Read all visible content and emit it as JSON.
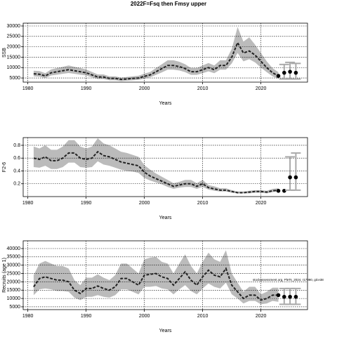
{
  "title": "2022F=Fsq then Fmsy upper",
  "chart_data": [
    {
      "type": "line",
      "ylabel": "SSB",
      "xlabel": "Years",
      "color": "#222222",
      "band_color": "#bbbbbb",
      "bar_color": "#aaaaaa",
      "grid": true,
      "xlim": [
        1979.2,
        2028
      ],
      "xticks": [
        1980,
        1990,
        2000,
        2010,
        2020
      ],
      "ylim": [
        3000,
        31350
      ],
      "yticks": [
        5000,
        10000,
        15000,
        20000,
        25000,
        30000
      ],
      "x": [
        1981,
        1982,
        1983,
        1984,
        1985,
        1986,
        1987,
        1988,
        1989,
        1990,
        1991,
        1992,
        1993,
        1994,
        1995,
        1996,
        1997,
        1998,
        1999,
        2000,
        2001,
        2002,
        2003,
        2004,
        2005,
        2006,
        2007,
        2008,
        2009,
        2010,
        2011,
        2012,
        2013,
        2014,
        2015,
        2016,
        2017,
        2018,
        2019,
        2020,
        2021,
        2022,
        2023
      ],
      "values": [
        7000,
        6800,
        6000,
        7500,
        8000,
        8500,
        9000,
        8500,
        8000,
        7500,
        6500,
        5500,
        5500,
        4800,
        4800,
        4300,
        4500,
        4800,
        5000,
        5800,
        6500,
        8000,
        9500,
        11000,
        11000,
        10500,
        9500,
        8000,
        8000,
        9000,
        10000,
        9000,
        11000,
        11000,
        15000,
        22000,
        17000,
        18000,
        16000,
        13000,
        10000,
        7500,
        6000
      ],
      "low": [
        5800,
        5600,
        5000,
        6200,
        6600,
        7000,
        7400,
        7000,
        6600,
        6200,
        5300,
        4500,
        4500,
        3900,
        3900,
        3500,
        3700,
        3900,
        4100,
        4700,
        5300,
        6500,
        7700,
        9000,
        9000,
        8600,
        7800,
        6500,
        6500,
        7300,
        8200,
        7300,
        9000,
        9000,
        12000,
        17000,
        13000,
        14000,
        12500,
        10000,
        7800,
        5800,
        4600
      ],
      "high": [
        8500,
        8300,
        7300,
        9100,
        9800,
        10400,
        11000,
        10400,
        9800,
        9100,
        7900,
        6700,
        6700,
        5800,
        5800,
        5200,
        5500,
        5800,
        6100,
        7100,
        7900,
        9800,
        11600,
        13500,
        13500,
        12800,
        11600,
        9800,
        9800,
        11000,
        12200,
        11000,
        13500,
        13500,
        19000,
        29500,
        22500,
        24500,
        21000,
        17000,
        13000,
        9700,
        7800
      ],
      "projection": {
        "x": [
          2023,
          2024,
          2025,
          2026
        ],
        "values": [
          6000,
          7500,
          8000,
          7500
        ],
        "low": [
          null,
          4500,
          4500,
          4500
        ],
        "high": [
          null,
          11500,
          12500,
          12000
        ]
      }
    },
    {
      "type": "line",
      "ylabel": "F2-6",
      "xlabel": "Years",
      "color": "#222222",
      "band_color": "#bbbbbb",
      "bar_color": "#aaaaaa",
      "grid": true,
      "xlim": [
        1979.2,
        2028
      ],
      "xticks": [
        1980,
        1990,
        2000,
        2010,
        2020
      ],
      "ylim": [
        0.0,
        0.92
      ],
      "yticks": [
        0.2,
        0.4,
        0.6,
        0.8
      ],
      "x": [
        1981,
        1982,
        1983,
        1984,
        1985,
        1986,
        1987,
        1988,
        1989,
        1990,
        1991,
        1992,
        1993,
        1994,
        1995,
        1996,
        1997,
        1998,
        1999,
        2000,
        2001,
        2002,
        2003,
        2004,
        2005,
        2006,
        2007,
        2008,
        2009,
        2010,
        2011,
        2012,
        2013,
        2014,
        2015,
        2016,
        2017,
        2018,
        2019,
        2020,
        2021,
        2022,
        2023
      ],
      "values": [
        0.6,
        0.58,
        0.62,
        0.56,
        0.56,
        0.6,
        0.68,
        0.68,
        0.6,
        0.58,
        0.6,
        0.7,
        0.64,
        0.62,
        0.58,
        0.54,
        0.52,
        0.5,
        0.48,
        0.38,
        0.32,
        0.28,
        0.24,
        0.2,
        0.16,
        0.18,
        0.2,
        0.2,
        0.16,
        0.2,
        0.14,
        0.12,
        0.1,
        0.1,
        0.08,
        0.06,
        0.06,
        0.07,
        0.08,
        0.08,
        0.07,
        0.09,
        0.1
      ],
      "low": [
        0.46,
        0.45,
        0.48,
        0.43,
        0.43,
        0.46,
        0.53,
        0.53,
        0.46,
        0.45,
        0.46,
        0.55,
        0.5,
        0.48,
        0.45,
        0.42,
        0.4,
        0.39,
        0.37,
        0.29,
        0.25,
        0.22,
        0.19,
        0.15,
        0.12,
        0.14,
        0.15,
        0.15,
        0.12,
        0.15,
        0.11,
        0.09,
        0.08,
        0.08,
        0.06,
        0.05,
        0.05,
        0.05,
        0.06,
        0.06,
        0.05,
        0.07,
        0.08
      ],
      "high": [
        0.78,
        0.75,
        0.8,
        0.73,
        0.73,
        0.78,
        0.88,
        0.88,
        0.78,
        0.75,
        0.78,
        0.91,
        0.83,
        0.8,
        0.75,
        0.7,
        0.68,
        0.65,
        0.62,
        0.49,
        0.42,
        0.36,
        0.31,
        0.26,
        0.21,
        0.23,
        0.26,
        0.26,
        0.21,
        0.26,
        0.18,
        0.16,
        0.13,
        0.13,
        0.1,
        0.08,
        0.08,
        0.09,
        0.1,
        0.1,
        0.09,
        0.12,
        0.13
      ],
      "projection": {
        "x": [
          2023,
          2024,
          2025,
          2026
        ],
        "values": [
          0.09,
          0.09,
          0.3,
          0.3
        ],
        "low": [
          null,
          null,
          0.1,
          0.1
        ],
        "high": [
          null,
          null,
          0.62,
          0.68
        ]
      }
    },
    {
      "type": "line",
      "ylabel": "Recruits (age 1)",
      "xlabel": "Years",
      "color": "#222222",
      "band_color": "#bbbbbb",
      "bar_color": "#aaaaaa",
      "grid": true,
      "annotation": "stockassessment.org, PleTs_2024, r17990, git:e38",
      "xlim": [
        1979.2,
        2028
      ],
      "xticks": [
        1980,
        1990,
        2000,
        2010,
        2020
      ],
      "ylim": [
        3300,
        44640
      ],
      "yticks": [
        5000,
        10000,
        15000,
        20000,
        25000,
        30000,
        35000,
        40000
      ],
      "x": [
        1981,
        1982,
        1983,
        1984,
        1985,
        1986,
        1987,
        1988,
        1989,
        1990,
        1991,
        1992,
        1993,
        1994,
        1995,
        1996,
        1997,
        1998,
        1999,
        2000,
        2001,
        2002,
        2003,
        2004,
        2005,
        2006,
        2007,
        2008,
        2009,
        2010,
        2011,
        2012,
        2013,
        2014,
        2015,
        2016,
        2017,
        2018,
        2019,
        2020,
        2021,
        2022,
        2023
      ],
      "values": [
        17000,
        22000,
        23000,
        22000,
        21000,
        21000,
        20000,
        15000,
        13000,
        16000,
        16000,
        17500,
        16000,
        15000,
        17000,
        22000,
        22000,
        20000,
        18000,
        24000,
        24500,
        25000,
        23000,
        22000,
        18000,
        22000,
        26000,
        21000,
        18000,
        23000,
        27000,
        24000,
        23000,
        28000,
        18000,
        14000,
        10000,
        12000,
        12000,
        9000,
        10000,
        12000,
        12000
      ],
      "low": [
        12000,
        15500,
        16000,
        15500,
        14500,
        14500,
        14000,
        10500,
        9000,
        11000,
        11000,
        12000,
        11000,
        10500,
        12000,
        15500,
        15500,
        14000,
        12500,
        17000,
        17000,
        17500,
        16000,
        15500,
        12500,
        15500,
        18000,
        14500,
        12500,
        16000,
        19000,
        17000,
        16000,
        19500,
        12500,
        10000,
        7000,
        8500,
        8500,
        6500,
        7000,
        8500,
        8000
      ],
      "high": [
        24000,
        31000,
        32500,
        31000,
        29500,
        29500,
        28000,
        21000,
        18000,
        22500,
        22500,
        24500,
        22500,
        21000,
        24000,
        31000,
        31000,
        28000,
        25000,
        33500,
        34500,
        35000,
        32000,
        31000,
        25000,
        31000,
        36500,
        29500,
        25000,
        32000,
        37500,
        33500,
        32000,
        39000,
        25000,
        19500,
        14000,
        17000,
        17000,
        12500,
        14000,
        16500,
        16500
      ],
      "projection": {
        "x": [
          2023,
          2024,
          2025,
          2026
        ],
        "values": [
          12000,
          11000,
          11000,
          11000
        ],
        "low": [
          null,
          6500,
          6500,
          6500
        ],
        "high": [
          null,
          16000,
          16000,
          16000
        ]
      }
    }
  ]
}
